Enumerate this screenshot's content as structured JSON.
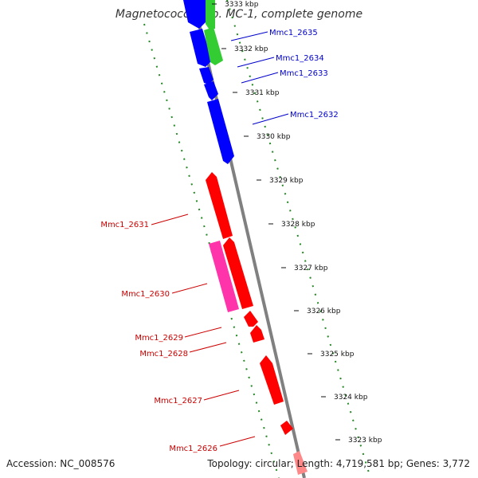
{
  "title": "Magnetococcus sp. MC-1, complete genome",
  "footer": {
    "accession": "Accession: NC_008576",
    "summary": "Topology: circular; Length: 4,719,581 bp; Genes: 3,772"
  },
  "colors": {
    "backbone": "#808080",
    "minus_strand_gene": "#ff0000",
    "minus_strand_gene_alt": "#ff33aa",
    "plus_strand_gene": "#0000ff",
    "plus_strand_gene_alt": "#33cc33",
    "minus_label": "#cc0000",
    "plus_label": "#0000cc",
    "gc_marks": "#228822"
  },
  "ticks": [
    {
      "label": "3333 kbp"
    },
    {
      "label": "3332 kbp"
    },
    {
      "label": "3331 kbp"
    },
    {
      "label": "3330 kbp"
    },
    {
      "label": "3329 kbp"
    },
    {
      "label": "3328 kbp"
    },
    {
      "label": "3327 kbp"
    },
    {
      "label": "3326 kbp"
    },
    {
      "label": "3325 kbp"
    },
    {
      "label": "3324 kbp"
    },
    {
      "label": "3323 kbp"
    }
  ],
  "plus_genes": [
    "Mmc1_2635",
    "Mmc1_2634",
    "Mmc1_2633",
    "Mmc1_2632"
  ],
  "minus_genes": [
    "Mmc1_2631",
    "Mmc1_2630",
    "Mmc1_2629",
    "Mmc1_2628",
    "Mmc1_2627",
    "Mmc1_2626"
  ]
}
